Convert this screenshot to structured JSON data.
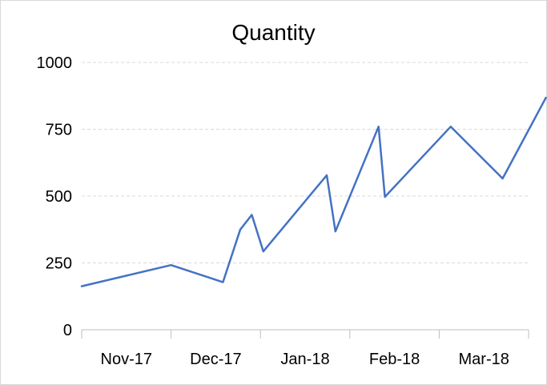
{
  "chart_data": {
    "type": "line",
    "title": "Quantity",
    "xlabel": "",
    "ylabel": "",
    "ylim": [
      0,
      1000
    ],
    "yticks": [
      "0",
      "250",
      "500",
      "750",
      "1000"
    ],
    "xticks": [
      "Nov-17",
      "Dec-17",
      "Jan-18",
      "Feb-18",
      "Mar-18"
    ],
    "grid": "horizontal dashed",
    "legend": "none",
    "series": [
      {
        "color": "#4472c4",
        "points": [
          {
            "x": "2017-11-01",
            "y": 163
          },
          {
            "x": "2017-12-01",
            "y": 242
          },
          {
            "x": "2017-12-19",
            "y": 178
          },
          {
            "x": "2017-12-25",
            "y": 375
          },
          {
            "x": "2017-12-29",
            "y": 430
          },
          {
            "x": "2018-01-02",
            "y": 293
          },
          {
            "x": "2018-01-24",
            "y": 578
          },
          {
            "x": "2018-01-27",
            "y": 368
          },
          {
            "x": "2018-02-10",
            "y": 760
          },
          {
            "x": "2018-02-12",
            "y": 497
          },
          {
            "x": "2018-03-05",
            "y": 760
          },
          {
            "x": "2018-03-23",
            "y": 566
          },
          {
            "x": "2018-04-07",
            "y": 868
          }
        ]
      }
    ]
  }
}
